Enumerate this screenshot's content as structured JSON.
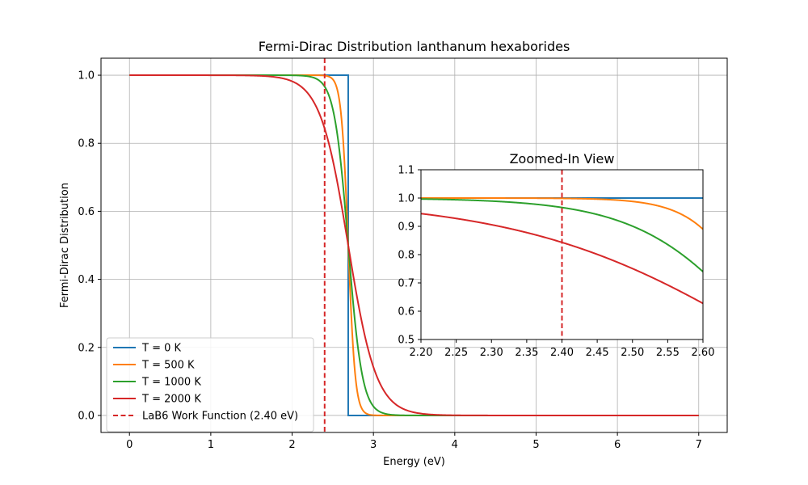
{
  "chart_data": [
    {
      "type": "line",
      "title": "Fermi-Dirac Distribution lanthanum hexaborides",
      "xlabel": "Energy (eV)",
      "ylabel": "Fermi-Dirac Distribution",
      "xlim": [
        -0.35,
        7.35
      ],
      "ylim": [
        -0.05,
        1.05
      ],
      "xticks": [
        0,
        1,
        2,
        3,
        4,
        5,
        6,
        7
      ],
      "yticks": [
        0.0,
        0.2,
        0.4,
        0.6,
        0.8,
        1.0
      ],
      "xtick_labels": [
        "0",
        "1",
        "2",
        "3",
        "4",
        "5",
        "6",
        "7"
      ],
      "ytick_labels": [
        "0.0",
        "0.2",
        "0.4",
        "0.6",
        "0.8",
        "1.0"
      ],
      "grid": true,
      "legend_position": "lower-left",
      "fermi_energy": 2.69,
      "x_range": [
        0,
        7
      ],
      "series": [
        {
          "name": "T = 0 K",
          "temperature": 0,
          "color": "#1f77b4",
          "style": "solid"
        },
        {
          "name": "T = 500 K",
          "temperature": 500,
          "color": "#ff7f0e",
          "style": "solid"
        },
        {
          "name": "T = 1000 K",
          "temperature": 1000,
          "color": "#2ca02c",
          "style": "solid"
        },
        {
          "name": "T = 2000 K",
          "temperature": 2000,
          "color": "#d62728",
          "style": "solid"
        },
        {
          "name": "LaB6 Work Function (2.40 eV)",
          "vline_x": 2.4,
          "color": "#d62728",
          "style": "dashed"
        }
      ]
    },
    {
      "type": "line",
      "title": "Zoomed-In View",
      "xlim": [
        2.2,
        2.6
      ],
      "ylim": [
        0.5,
        1.1
      ],
      "xticks": [
        2.2,
        2.25,
        2.3,
        2.35,
        2.4,
        2.45,
        2.5,
        2.55,
        2.6
      ],
      "yticks": [
        0.5,
        0.6,
        0.7,
        0.8,
        0.9,
        1.0,
        1.1
      ],
      "xtick_labels": [
        "2.20",
        "2.25",
        "2.30",
        "2.35",
        "2.40",
        "2.45",
        "2.50",
        "2.55",
        "2.60"
      ],
      "ytick_labels": [
        "0.5",
        "0.6",
        "0.7",
        "0.8",
        "0.9",
        "1.0",
        "1.1"
      ],
      "grid": false,
      "x_range": [
        2.2,
        2.6
      ],
      "vline_x": 2.4
    }
  ]
}
